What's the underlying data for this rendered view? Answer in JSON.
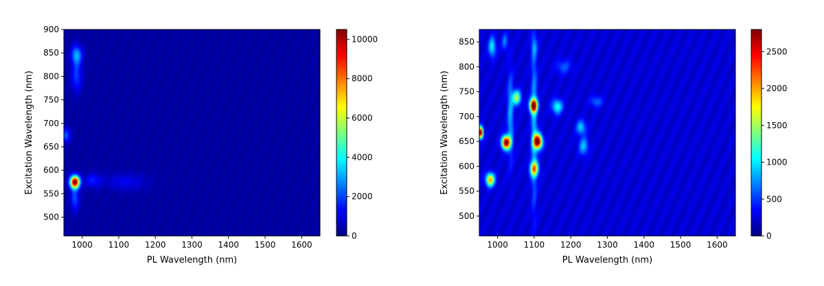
{
  "colormap": "jet",
  "chart_data": [
    {
      "type": "heatmap",
      "xlabel": "PL Wavelength (nm)",
      "ylabel": "Excitation Wavelength (nm)",
      "xlim": [
        950,
        1650
      ],
      "ylim": [
        460,
        900
      ],
      "xticks": [
        1000,
        1100,
        1200,
        1300,
        1400,
        1500,
        1600
      ],
      "yticks": [
        500,
        550,
        600,
        650,
        700,
        750,
        800,
        850,
        900
      ],
      "colorbar": {
        "min": 0,
        "max": 10500,
        "ticks": [
          0,
          2000,
          4000,
          6000,
          8000,
          10000
        ]
      },
      "background": 380,
      "peaks": [
        {
          "x": 980,
          "y": 575,
          "value": 10500,
          "sx": 9,
          "sy": 9
        },
        {
          "x": 980,
          "y": 540,
          "value": 1800,
          "sx": 8,
          "sy": 18
        },
        {
          "x": 985,
          "y": 845,
          "value": 2800,
          "sx": 10,
          "sy": 14
        },
        {
          "x": 985,
          "y": 800,
          "value": 1600,
          "sx": 10,
          "sy": 22
        },
        {
          "x": 955,
          "y": 675,
          "value": 2000,
          "sx": 8,
          "sy": 10
        },
        {
          "x": 1030,
          "y": 578,
          "value": 1200,
          "sx": 15,
          "sy": 10
        },
        {
          "x": 1120,
          "y": 575,
          "value": 800,
          "sx": 40,
          "sy": 12
        }
      ]
    },
    {
      "type": "heatmap",
      "xlabel": "PL Wavelength (nm)",
      "ylabel": "Excitation Wavelength (nm)",
      "xlim": [
        950,
        1650
      ],
      "ylim": [
        460,
        875
      ],
      "xticks": [
        1000,
        1100,
        1200,
        1300,
        1400,
        1500,
        1600
      ],
      "yticks": [
        500,
        550,
        600,
        650,
        700,
        750,
        800,
        850
      ],
      "colorbar": {
        "min": 0,
        "max": 2800,
        "ticks": [
          0,
          500,
          1000,
          1500,
          2000,
          2500
        ]
      },
      "background": 260,
      "peaks": [
        {
          "x": 953,
          "y": 668,
          "value": 2700,
          "sx": 5,
          "sy": 8
        },
        {
          "x": 1110,
          "y": 650,
          "value": 2800,
          "sx": 8,
          "sy": 10
        },
        {
          "x": 1023,
          "y": 648,
          "value": 2700,
          "sx": 8,
          "sy": 9
        },
        {
          "x": 1098,
          "y": 722,
          "value": 2600,
          "sx": 7,
          "sy": 9
        },
        {
          "x": 980,
          "y": 573,
          "value": 1800,
          "sx": 8,
          "sy": 9
        },
        {
          "x": 1100,
          "y": 595,
          "value": 1600,
          "sx": 8,
          "sy": 10
        },
        {
          "x": 1052,
          "y": 738,
          "value": 1300,
          "sx": 8,
          "sy": 10
        },
        {
          "x": 1163,
          "y": 720,
          "value": 900,
          "sx": 10,
          "sy": 10
        },
        {
          "x": 985,
          "y": 840,
          "value": 800,
          "sx": 7,
          "sy": 14
        },
        {
          "x": 1228,
          "y": 678,
          "value": 700,
          "sx": 9,
          "sy": 10
        },
        {
          "x": 1235,
          "y": 640,
          "value": 650,
          "sx": 9,
          "sy": 12
        },
        {
          "x": 1270,
          "y": 730,
          "value": 400,
          "sx": 12,
          "sy": 8
        },
        {
          "x": 1180,
          "y": 800,
          "value": 350,
          "sx": 15,
          "sy": 10
        },
        {
          "x": 1035,
          "y": 700,
          "value": 600,
          "sx": 6,
          "sy": 60
        },
        {
          "x": 1100,
          "y": 680,
          "value": 650,
          "sx": 6,
          "sy": 110
        },
        {
          "x": 1020,
          "y": 850,
          "value": 450,
          "sx": 6,
          "sy": 12
        },
        {
          "x": 1100,
          "y": 840,
          "value": 400,
          "sx": 6,
          "sy": 15
        }
      ]
    }
  ]
}
